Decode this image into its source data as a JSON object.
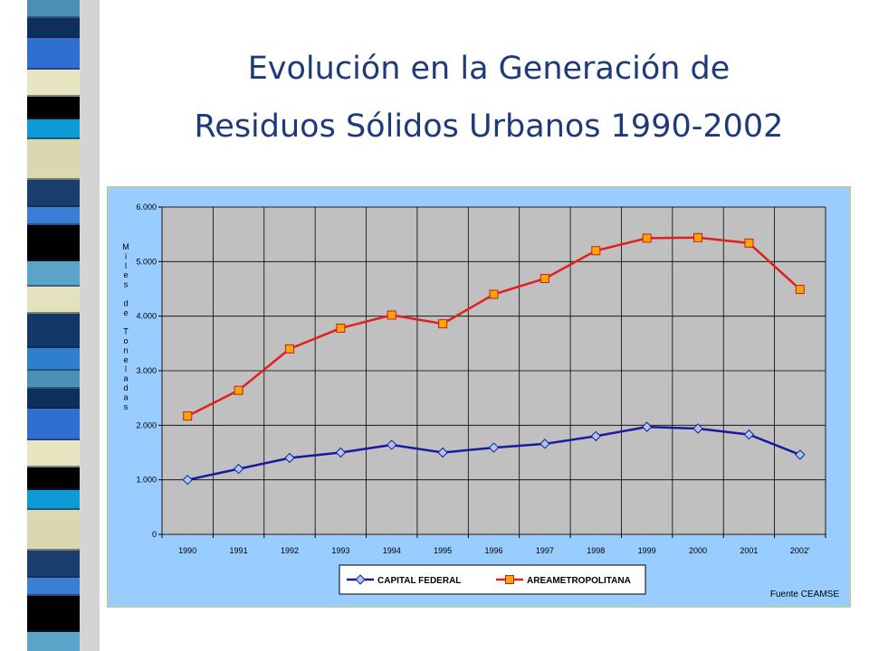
{
  "slide": {
    "title_line1": "Evolución en la Generación de",
    "title_line2": "Residuos Sólidos Urbanos 1990-2002",
    "source": "Fuente CEAMSE"
  },
  "colors": {
    "title": "#1f3a7a",
    "chart_background": "#99ccff",
    "plot_background": "#c0c0c0",
    "series_capital": "#1a1aa0",
    "series_area": "#e0201f"
  },
  "chart_data": {
    "type": "line",
    "title": "",
    "xlabel": "",
    "ylabel": "Miles de Toneladas",
    "categories": [
      "1990",
      "1991",
      "1992",
      "1993",
      "1994",
      "1995",
      "1996",
      "1997",
      "1998",
      "1999",
      "2000",
      "2001",
      "2002'"
    ],
    "y_ticks": [
      "0",
      "1.000",
      "2.000",
      "3.000",
      "4.000",
      "5.000",
      "6.000"
    ],
    "ylim": [
      0,
      6000
    ],
    "grid": true,
    "legend_position": "bottom",
    "series": [
      {
        "name": "CAPITAL FEDERAL",
        "marker": "diamond",
        "values": [
          1000,
          1200,
          1400,
          1500,
          1640,
          1500,
          1590,
          1660,
          1800,
          1970,
          1940,
          1830,
          1460
        ]
      },
      {
        "name": "AREAMETROPOLITANA",
        "marker": "square",
        "values": [
          2170,
          2640,
          3400,
          3780,
          4020,
          3860,
          4400,
          4690,
          5200,
          5430,
          5440,
          5340,
          4490
        ]
      }
    ]
  }
}
